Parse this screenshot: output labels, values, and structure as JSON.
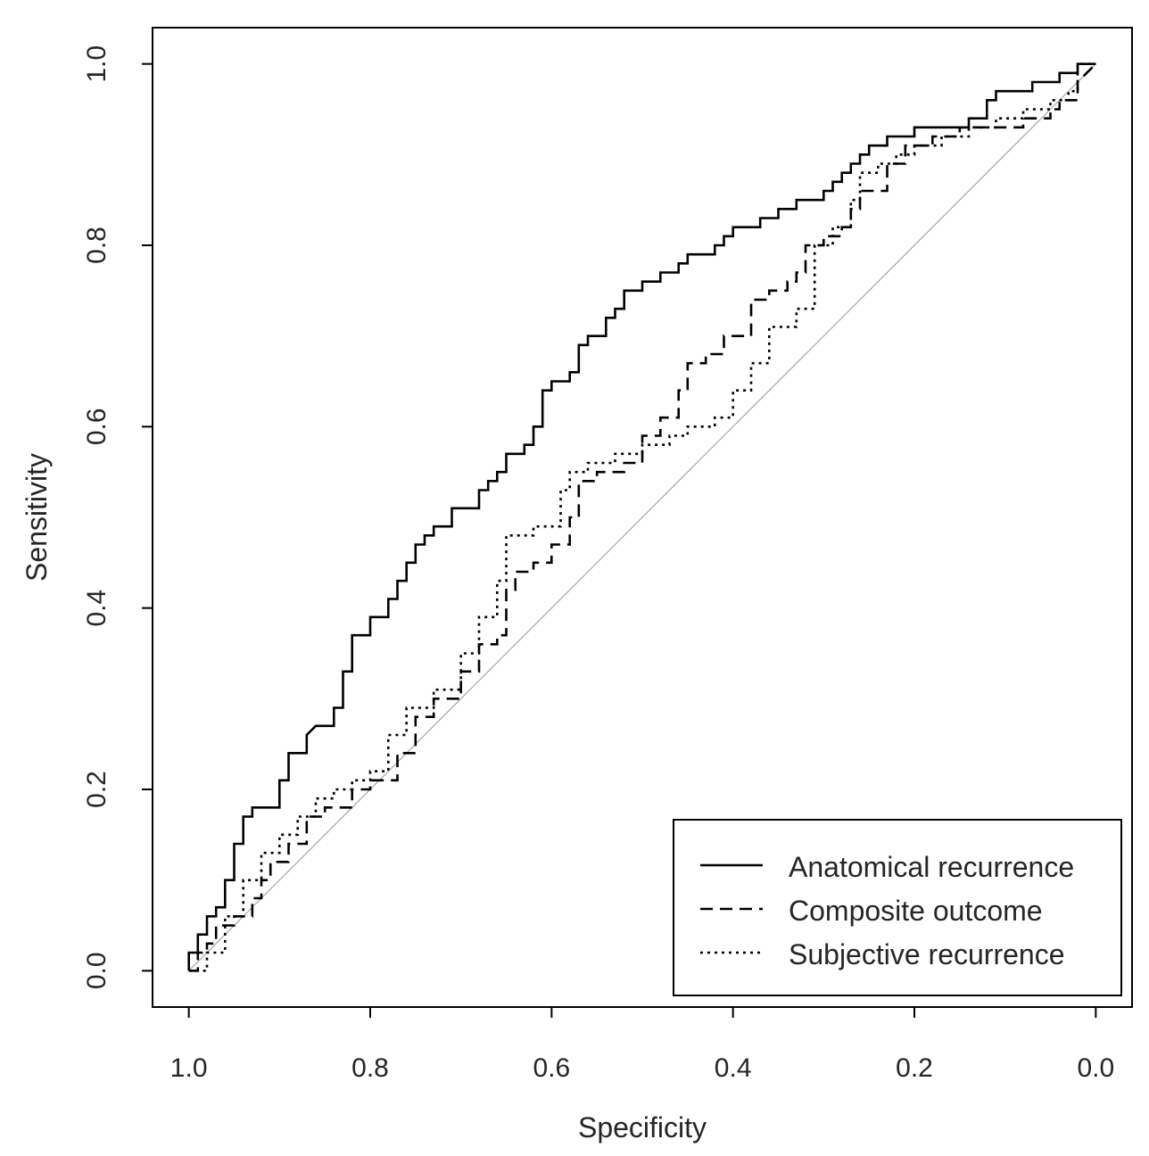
{
  "chart_data": {
    "type": "line",
    "xlabel": "Specificity",
    "ylabel": "Sensitivity",
    "xlim": [
      1.04,
      -0.04
    ],
    "ylim": [
      -0.04,
      1.04
    ],
    "x_ticks": [
      "1.0",
      "0.8",
      "0.6",
      "0.4",
      "0.2",
      "0.0"
    ],
    "y_ticks": [
      "0.0",
      "0.2",
      "0.4",
      "0.6",
      "0.8",
      "1.0"
    ],
    "legend_position": "bottom-right",
    "grid": false,
    "reference_line": {
      "from": [
        1.0,
        0.0
      ],
      "to": [
        0.0,
        1.0
      ],
      "color": "#a8a8a8"
    },
    "series": [
      {
        "name": "Anatomical recurrence",
        "style": "solid",
        "x": [
          1.0,
          1.0,
          0.99,
          0.99,
          0.98,
          0.98,
          0.97,
          0.97,
          0.96,
          0.96,
          0.95,
          0.95,
          0.94,
          0.94,
          0.93,
          0.93,
          0.9,
          0.9,
          0.89,
          0.89,
          0.87,
          0.87,
          0.86,
          0.84,
          0.84,
          0.83,
          0.83,
          0.82,
          0.82,
          0.8,
          0.8,
          0.78,
          0.78,
          0.77,
          0.77,
          0.76,
          0.76,
          0.75,
          0.75,
          0.74,
          0.74,
          0.73,
          0.73,
          0.71,
          0.71,
          0.68,
          0.68,
          0.67,
          0.67,
          0.66,
          0.66,
          0.65,
          0.65,
          0.63,
          0.63,
          0.62,
          0.62,
          0.61,
          0.61,
          0.6,
          0.6,
          0.58,
          0.58,
          0.57,
          0.57,
          0.56,
          0.56,
          0.54,
          0.54,
          0.53,
          0.53,
          0.52,
          0.52,
          0.5,
          0.5,
          0.48,
          0.48,
          0.47,
          0.47,
          0.46,
          0.46,
          0.45,
          0.45,
          0.42,
          0.42,
          0.41,
          0.41,
          0.4,
          0.4,
          0.39,
          0.39,
          0.37,
          0.37,
          0.35,
          0.35,
          0.33,
          0.33,
          0.3,
          0.3,
          0.29,
          0.29,
          0.28,
          0.28,
          0.27,
          0.27,
          0.26,
          0.26,
          0.25,
          0.25,
          0.24,
          0.24,
          0.23,
          0.23,
          0.2,
          0.2,
          0.17,
          0.17,
          0.14,
          0.14,
          0.12,
          0.12,
          0.11,
          0.11,
          0.07,
          0.07,
          0.04,
          0.04,
          0.03,
          0.03,
          0.02,
          0.02,
          0.0
        ],
        "y": [
          0.0,
          0.02,
          0.02,
          0.04,
          0.04,
          0.06,
          0.06,
          0.07,
          0.07,
          0.1,
          0.1,
          0.14,
          0.14,
          0.17,
          0.17,
          0.18,
          0.18,
          0.21,
          0.21,
          0.24,
          0.24,
          0.26,
          0.27,
          0.27,
          0.29,
          0.29,
          0.33,
          0.33,
          0.37,
          0.37,
          0.39,
          0.39,
          0.41,
          0.41,
          0.43,
          0.43,
          0.45,
          0.45,
          0.47,
          0.47,
          0.48,
          0.48,
          0.49,
          0.49,
          0.51,
          0.51,
          0.53,
          0.53,
          0.54,
          0.54,
          0.55,
          0.55,
          0.57,
          0.57,
          0.58,
          0.58,
          0.6,
          0.6,
          0.64,
          0.64,
          0.65,
          0.65,
          0.66,
          0.66,
          0.69,
          0.69,
          0.7,
          0.7,
          0.72,
          0.72,
          0.73,
          0.73,
          0.75,
          0.75,
          0.76,
          0.76,
          0.77,
          0.77,
          0.77,
          0.77,
          0.78,
          0.78,
          0.79,
          0.79,
          0.8,
          0.8,
          0.81,
          0.81,
          0.82,
          0.82,
          0.82,
          0.82,
          0.83,
          0.83,
          0.84,
          0.84,
          0.85,
          0.85,
          0.86,
          0.86,
          0.87,
          0.87,
          0.88,
          0.88,
          0.89,
          0.89,
          0.9,
          0.9,
          0.91,
          0.91,
          0.91,
          0.91,
          0.92,
          0.92,
          0.93,
          0.93,
          0.93,
          0.93,
          0.94,
          0.94,
          0.96,
          0.96,
          0.97,
          0.97,
          0.98,
          0.98,
          0.99,
          0.99,
          0.99,
          0.99,
          1.0,
          1.0
        ]
      },
      {
        "name": "Composite outcome",
        "style": "dashed",
        "x": [
          1.0,
          0.99,
          0.99,
          0.98,
          0.98,
          0.97,
          0.97,
          0.95,
          0.95,
          0.93,
          0.93,
          0.92,
          0.92,
          0.91,
          0.91,
          0.89,
          0.89,
          0.87,
          0.87,
          0.85,
          0.85,
          0.82,
          0.82,
          0.8,
          0.8,
          0.77,
          0.77,
          0.75,
          0.75,
          0.73,
          0.73,
          0.7,
          0.7,
          0.68,
          0.68,
          0.66,
          0.66,
          0.65,
          0.65,
          0.64,
          0.64,
          0.62,
          0.62,
          0.6,
          0.6,
          0.58,
          0.58,
          0.57,
          0.57,
          0.55,
          0.55,
          0.52,
          0.52,
          0.5,
          0.5,
          0.48,
          0.48,
          0.46,
          0.46,
          0.45,
          0.45,
          0.43,
          0.43,
          0.41,
          0.41,
          0.38,
          0.38,
          0.36,
          0.36,
          0.34,
          0.34,
          0.33,
          0.33,
          0.32,
          0.32,
          0.3,
          0.3,
          0.28,
          0.28,
          0.27,
          0.27,
          0.26,
          0.26,
          0.25,
          0.25,
          0.23,
          0.23,
          0.21,
          0.21,
          0.18,
          0.18,
          0.15,
          0.15,
          0.1,
          0.1,
          0.08,
          0.08,
          0.05,
          0.05,
          0.04,
          0.04,
          0.02,
          0.02,
          0.0
        ],
        "y": [
          0.0,
          0.0,
          0.02,
          0.02,
          0.03,
          0.03,
          0.05,
          0.05,
          0.06,
          0.06,
          0.08,
          0.08,
          0.1,
          0.1,
          0.12,
          0.12,
          0.14,
          0.14,
          0.17,
          0.17,
          0.18,
          0.18,
          0.2,
          0.2,
          0.21,
          0.21,
          0.24,
          0.24,
          0.28,
          0.28,
          0.3,
          0.3,
          0.33,
          0.33,
          0.36,
          0.36,
          0.37,
          0.37,
          0.42,
          0.42,
          0.44,
          0.44,
          0.45,
          0.45,
          0.47,
          0.47,
          0.5,
          0.5,
          0.54,
          0.54,
          0.55,
          0.55,
          0.56,
          0.56,
          0.59,
          0.59,
          0.61,
          0.61,
          0.64,
          0.64,
          0.67,
          0.67,
          0.68,
          0.68,
          0.7,
          0.7,
          0.74,
          0.74,
          0.75,
          0.75,
          0.76,
          0.76,
          0.77,
          0.77,
          0.8,
          0.8,
          0.81,
          0.81,
          0.82,
          0.82,
          0.84,
          0.84,
          0.86,
          0.86,
          0.86,
          0.86,
          0.89,
          0.89,
          0.91,
          0.91,
          0.92,
          0.92,
          0.93,
          0.93,
          0.93,
          0.93,
          0.94,
          0.94,
          0.95,
          0.95,
          0.96,
          0.96,
          0.98,
          1.0
        ]
      },
      {
        "name": "Subjective recurrence",
        "style": "dotted",
        "x": [
          1.0,
          0.98,
          0.98,
          0.96,
          0.96,
          0.94,
          0.94,
          0.92,
          0.92,
          0.9,
          0.9,
          0.88,
          0.88,
          0.86,
          0.86,
          0.84,
          0.84,
          0.82,
          0.82,
          0.8,
          0.8,
          0.78,
          0.78,
          0.76,
          0.76,
          0.73,
          0.73,
          0.7,
          0.7,
          0.68,
          0.68,
          0.66,
          0.66,
          0.65,
          0.65,
          0.62,
          0.62,
          0.59,
          0.59,
          0.58,
          0.58,
          0.56,
          0.56,
          0.53,
          0.53,
          0.5,
          0.5,
          0.47,
          0.47,
          0.45,
          0.45,
          0.42,
          0.42,
          0.4,
          0.4,
          0.38,
          0.38,
          0.36,
          0.36,
          0.33,
          0.33,
          0.31,
          0.31,
          0.29,
          0.29,
          0.27,
          0.27,
          0.26,
          0.26,
          0.24,
          0.24,
          0.22,
          0.22,
          0.2,
          0.2,
          0.17,
          0.17,
          0.14,
          0.14,
          0.11,
          0.11,
          0.08,
          0.08,
          0.05,
          0.05,
          0.03,
          0.03,
          0.02,
          0.02,
          0.0
        ],
        "y": [
          0.0,
          0.0,
          0.02,
          0.02,
          0.06,
          0.06,
          0.1,
          0.1,
          0.13,
          0.13,
          0.15,
          0.15,
          0.17,
          0.17,
          0.19,
          0.19,
          0.2,
          0.2,
          0.21,
          0.21,
          0.22,
          0.22,
          0.26,
          0.26,
          0.29,
          0.29,
          0.31,
          0.31,
          0.35,
          0.35,
          0.39,
          0.39,
          0.43,
          0.43,
          0.48,
          0.48,
          0.49,
          0.49,
          0.53,
          0.53,
          0.55,
          0.55,
          0.56,
          0.56,
          0.57,
          0.57,
          0.58,
          0.58,
          0.59,
          0.59,
          0.6,
          0.6,
          0.61,
          0.61,
          0.64,
          0.64,
          0.67,
          0.67,
          0.71,
          0.71,
          0.73,
          0.73,
          0.8,
          0.8,
          0.82,
          0.82,
          0.85,
          0.85,
          0.88,
          0.88,
          0.89,
          0.89,
          0.9,
          0.9,
          0.91,
          0.91,
          0.92,
          0.92,
          0.93,
          0.93,
          0.94,
          0.94,
          0.95,
          0.95,
          0.96,
          0.96,
          0.97,
          0.97,
          1.0,
          1.0
        ]
      }
    ]
  }
}
